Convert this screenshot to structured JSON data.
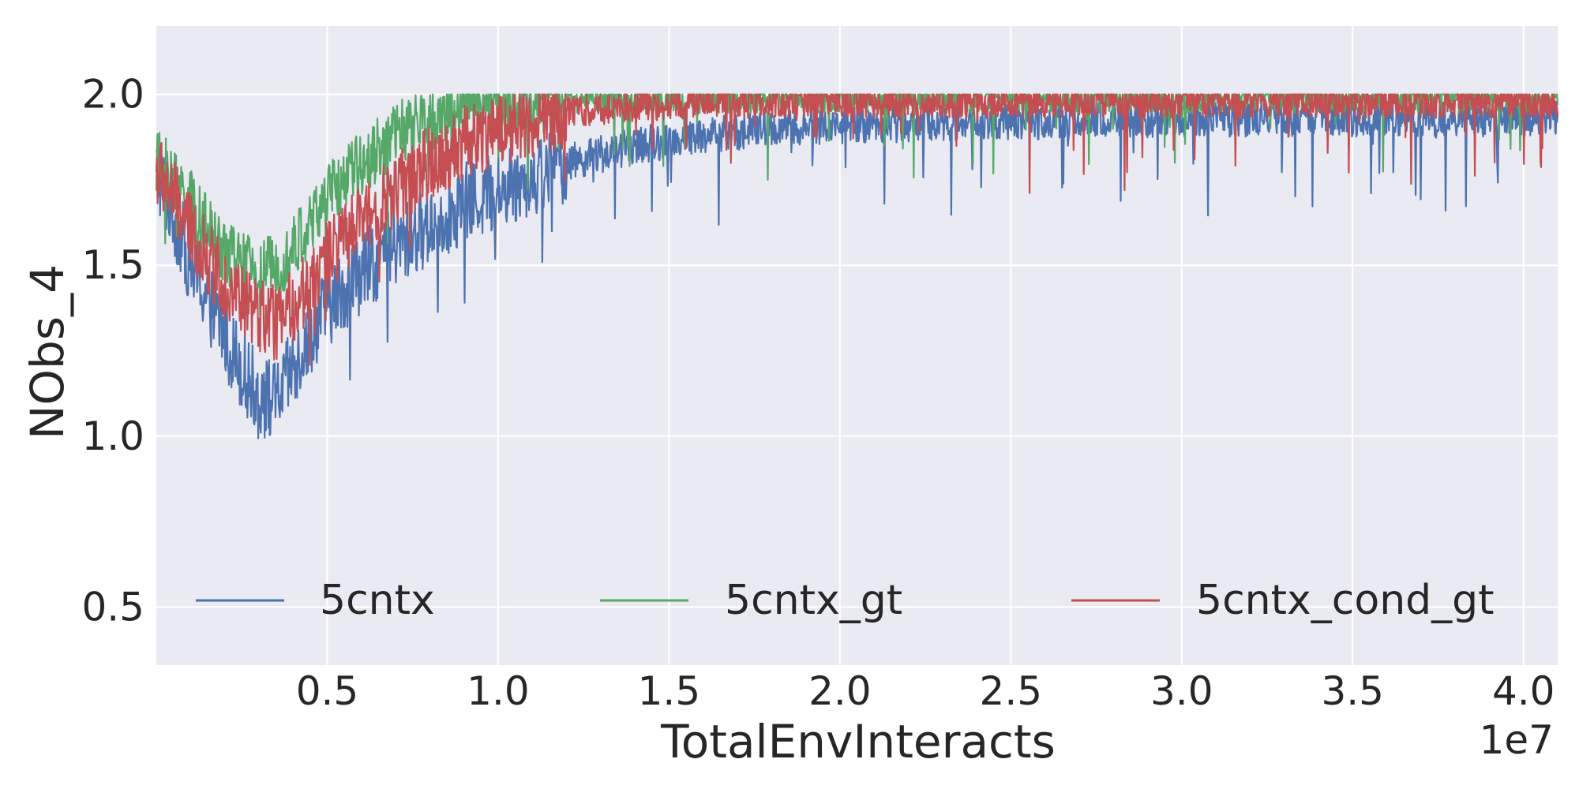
{
  "chart_data": {
    "type": "line",
    "title": "",
    "xlabel": "TotalEnvInteracts",
    "ylabel": "NObs_4",
    "x_offset_text": "1e7",
    "xlim": [
      0,
      4.1
    ],
    "ylim": [
      0.33,
      2.2
    ],
    "xticks": [
      0.5,
      1.0,
      1.5,
      2.0,
      2.5,
      3.0,
      3.5,
      4.0
    ],
    "xtick_labels": [
      "0.5",
      "1.0",
      "1.5",
      "2.0",
      "2.5",
      "3.0",
      "3.5",
      "4.0"
    ],
    "yticks": [
      0.5,
      1.0,
      1.5,
      2.0
    ],
    "ytick_labels": [
      "0.5",
      "1.0",
      "1.5",
      "2.0"
    ],
    "grid": true,
    "legend_position": "lower-center",
    "series": [
      {
        "name": "5cntx",
        "color": "#4c72b0",
        "x": [
          0.0,
          0.05,
          0.1,
          0.15,
          0.2,
          0.25,
          0.3,
          0.35,
          0.4,
          0.45,
          0.5,
          0.6,
          0.7,
          0.8,
          0.9,
          1.0,
          1.2,
          1.4,
          1.6,
          1.8,
          2.0,
          2.5,
          3.0,
          3.5,
          4.1
        ],
        "y": [
          1.78,
          1.65,
          1.5,
          1.4,
          1.3,
          1.2,
          1.12,
          1.1,
          1.2,
          1.3,
          1.38,
          1.48,
          1.55,
          1.62,
          1.68,
          1.72,
          1.8,
          1.85,
          1.88,
          1.9,
          1.91,
          1.92,
          1.93,
          1.93,
          1.93
        ],
        "noise": 0.12
      },
      {
        "name": "5cntx_gt",
        "color": "#55a868",
        "x": [
          0.0,
          0.05,
          0.1,
          0.15,
          0.2,
          0.25,
          0.3,
          0.35,
          0.4,
          0.45,
          0.5,
          0.6,
          0.7,
          0.8,
          0.9,
          1.0,
          1.2,
          1.4,
          1.6,
          1.8,
          2.0,
          2.5,
          3.0,
          3.5,
          4.1
        ],
        "y": [
          1.8,
          1.75,
          1.68,
          1.6,
          1.55,
          1.5,
          1.48,
          1.5,
          1.55,
          1.62,
          1.7,
          1.8,
          1.88,
          1.93,
          1.97,
          1.98,
          1.99,
          1.99,
          1.99,
          1.99,
          1.99,
          1.99,
          1.99,
          1.99,
          1.99
        ],
        "noise": 0.1
      },
      {
        "name": "5cntx_cond_gt",
        "color": "#c44e52",
        "x": [
          0.0,
          0.05,
          0.1,
          0.15,
          0.2,
          0.25,
          0.3,
          0.35,
          0.4,
          0.45,
          0.5,
          0.6,
          0.7,
          0.8,
          0.9,
          1.0,
          1.2,
          1.4,
          1.6,
          1.8,
          2.0,
          2.5,
          3.0,
          3.5,
          4.1
        ],
        "y": [
          1.78,
          1.7,
          1.6,
          1.52,
          1.45,
          1.4,
          1.35,
          1.33,
          1.38,
          1.45,
          1.52,
          1.63,
          1.72,
          1.8,
          1.86,
          1.9,
          1.95,
          1.97,
          1.98,
          1.98,
          1.98,
          1.98,
          1.98,
          1.98,
          1.98
        ],
        "noise": 0.11
      }
    ]
  }
}
